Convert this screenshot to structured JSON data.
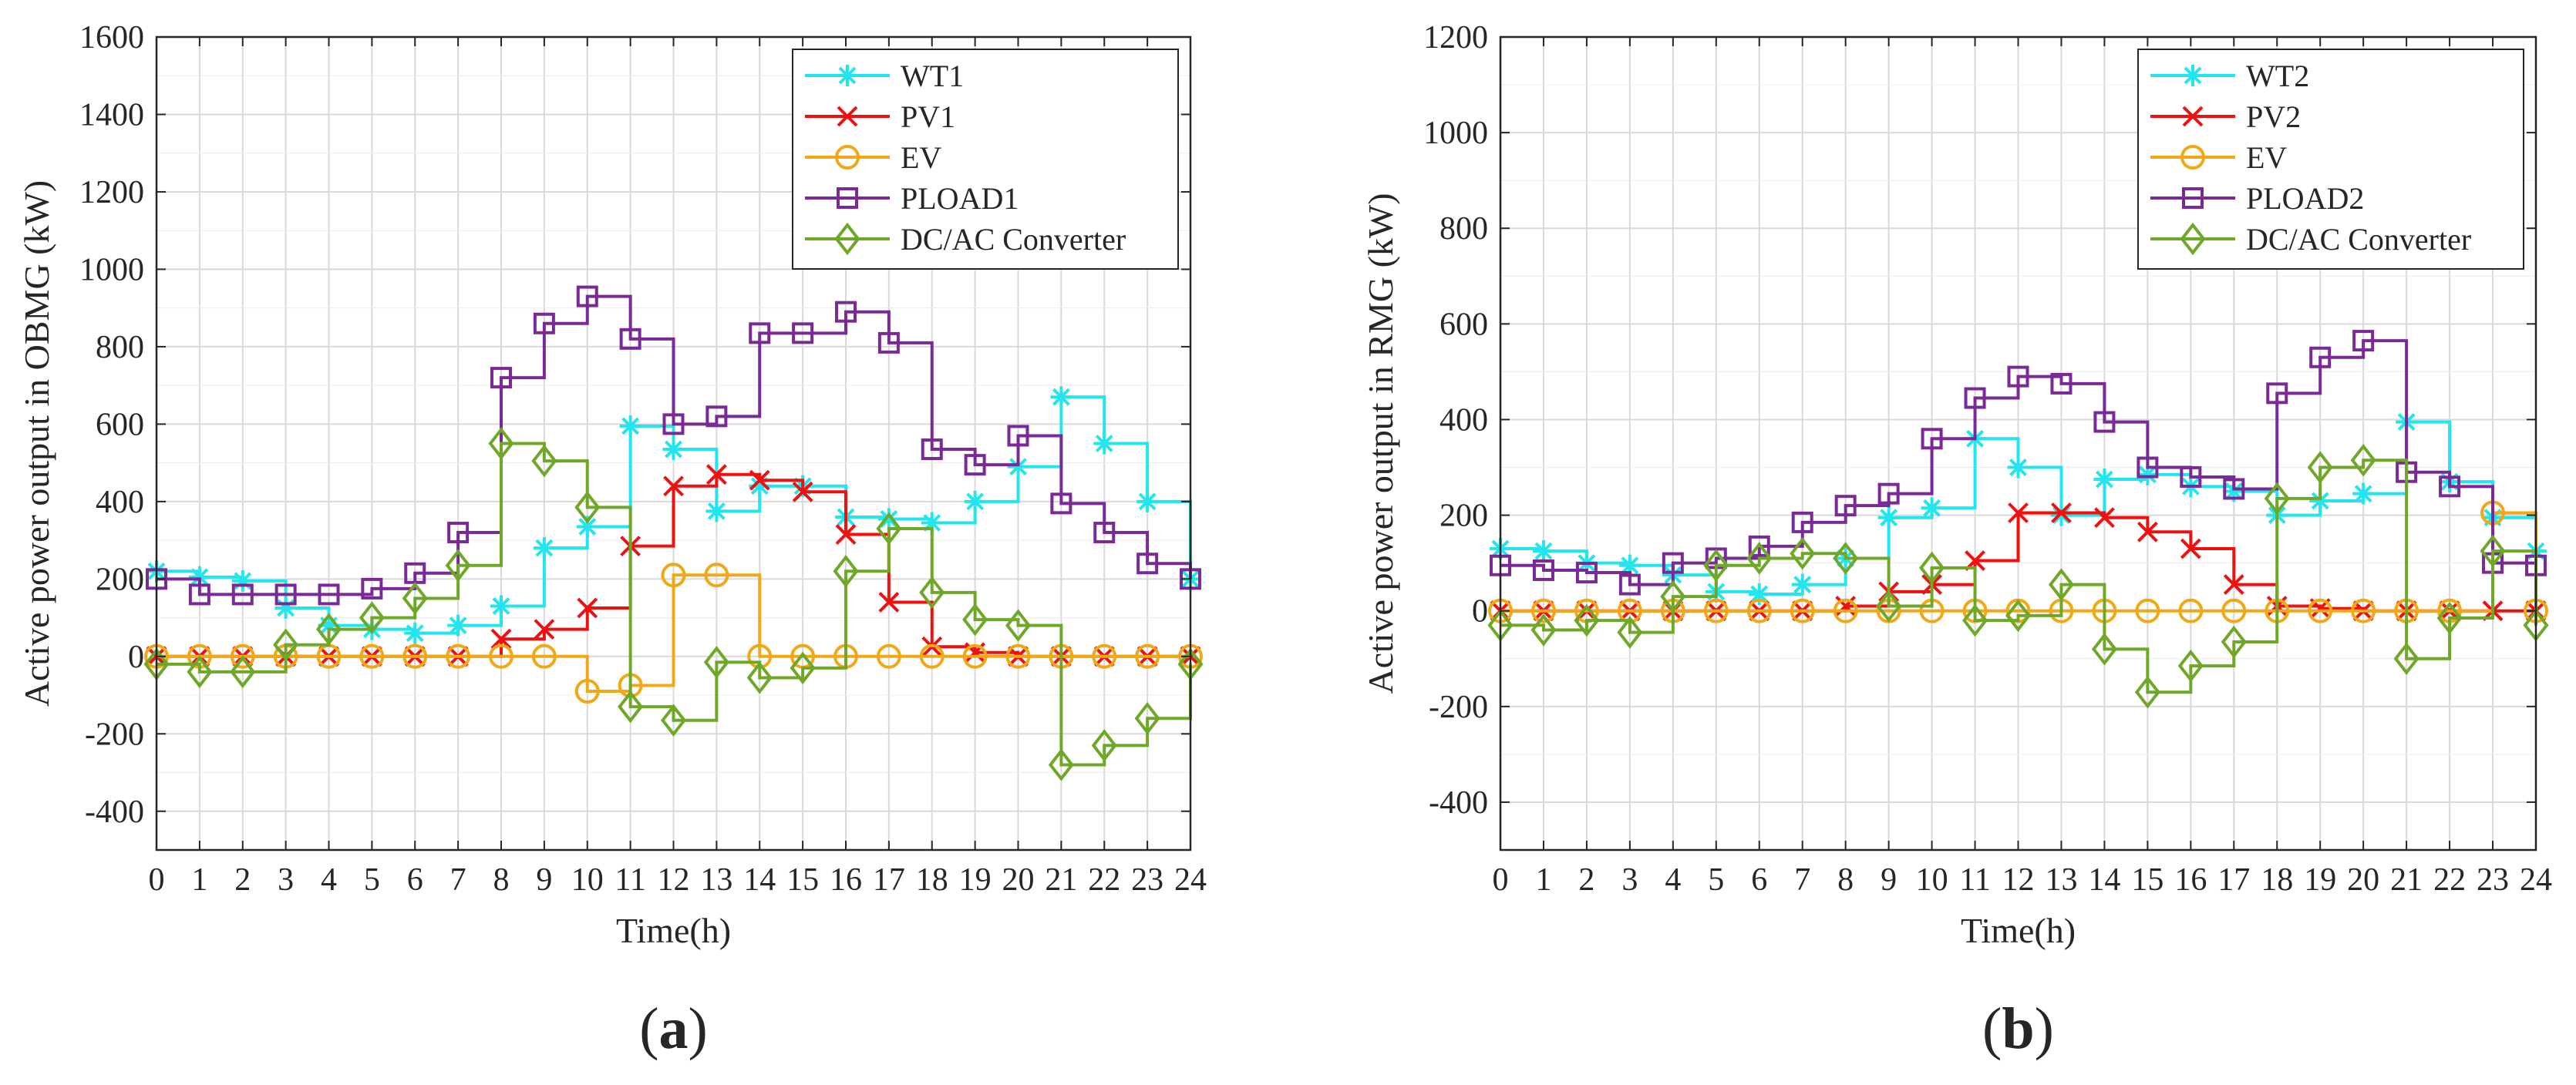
{
  "chart_data": [
    {
      "type": "line",
      "step": true,
      "panel_label": "a",
      "xlabel": "Time(h)",
      "ylabel": "Active power output in OBMG (kW)",
      "xlim": [
        0,
        24
      ],
      "ylim": [
        -500,
        1600
      ],
      "xticks": [
        0,
        1,
        2,
        3,
        4,
        5,
        6,
        7,
        8,
        9,
        10,
        11,
        12,
        13,
        14,
        15,
        16,
        17,
        18,
        19,
        20,
        21,
        22,
        23,
        24
      ],
      "yticks": [
        -400,
        -200,
        0,
        200,
        400,
        600,
        800,
        1000,
        1200,
        1400,
        1600
      ],
      "grid": true,
      "legend_position": "top-right",
      "x": [
        0,
        1,
        2,
        3,
        4,
        5,
        6,
        7,
        8,
        9,
        10,
        11,
        12,
        13,
        14,
        15,
        16,
        17,
        18,
        19,
        20,
        21,
        22,
        23,
        24
      ],
      "series": [
        {
          "name": "WT1",
          "color": "#22e5ee",
          "marker": "asterisk",
          "values": [
            220,
            205,
            195,
            125,
            80,
            70,
            60,
            80,
            130,
            280,
            335,
            595,
            535,
            375,
            440,
            440,
            360,
            355,
            345,
            400,
            490,
            670,
            550,
            400,
            200
          ]
        },
        {
          "name": "PV1",
          "color": "#ee1111",
          "marker": "x",
          "values": [
            0,
            0,
            0,
            0,
            0,
            0,
            0,
            0,
            45,
            70,
            125,
            285,
            440,
            470,
            455,
            425,
            315,
            140,
            25,
            10,
            0,
            0,
            0,
            0,
            0
          ]
        },
        {
          "name": "EV",
          "color": "#f0a818",
          "marker": "circle",
          "values": [
            0,
            0,
            0,
            0,
            0,
            0,
            0,
            0,
            0,
            0,
            -90,
            -75,
            210,
            210,
            0,
            0,
            0,
            0,
            0,
            0,
            0,
            0,
            0,
            0,
            0
          ]
        },
        {
          "name": "PLOAD1",
          "color": "#7a2a96",
          "marker": "square",
          "values": [
            200,
            160,
            160,
            160,
            160,
            175,
            215,
            320,
            720,
            860,
            930,
            820,
            600,
            620,
            835,
            835,
            890,
            810,
            535,
            495,
            570,
            395,
            320,
            240,
            200
          ]
        },
        {
          "name": "DC/AC Converter",
          "color": "#6fa829",
          "marker": "diamond",
          "values": [
            -20,
            -40,
            -40,
            30,
            70,
            100,
            150,
            235,
            550,
            505,
            385,
            -130,
            -165,
            -15,
            -55,
            -30,
            220,
            330,
            165,
            95,
            80,
            -280,
            -230,
            -160,
            -20
          ]
        }
      ]
    },
    {
      "type": "line",
      "step": true,
      "panel_label": "b",
      "xlabel": "Time(h)",
      "ylabel": "Active power output in RMG (kW)",
      "xlim": [
        0,
        24
      ],
      "ylim": [
        -500,
        1200
      ],
      "xticks": [
        0,
        1,
        2,
        3,
        4,
        5,
        6,
        7,
        8,
        9,
        10,
        11,
        12,
        13,
        14,
        15,
        16,
        17,
        18,
        19,
        20,
        21,
        22,
        23,
        24
      ],
      "yticks": [
        -400,
        -200,
        0,
        200,
        400,
        600,
        800,
        1000,
        1200
      ],
      "grid": true,
      "legend_position": "top-right",
      "x": [
        0,
        1,
        2,
        3,
        4,
        5,
        6,
        7,
        8,
        9,
        10,
        11,
        12,
        13,
        14,
        15,
        16,
        17,
        18,
        19,
        20,
        21,
        22,
        23,
        24
      ],
      "series": [
        {
          "name": "WT2",
          "color": "#22e5ee",
          "marker": "asterisk",
          "values": [
            130,
            125,
            100,
            95,
            75,
            40,
            35,
            55,
            110,
            195,
            215,
            360,
            300,
            200,
            275,
            285,
            260,
            250,
            200,
            230,
            245,
            395,
            270,
            195,
            125
          ]
        },
        {
          "name": "PV2",
          "color": "#ee1111",
          "marker": "x",
          "values": [
            0,
            0,
            0,
            0,
            0,
            0,
            0,
            0,
            10,
            40,
            55,
            105,
            205,
            205,
            195,
            165,
            130,
            55,
            10,
            5,
            0,
            0,
            0,
            0,
            0
          ]
        },
        {
          "name": "EV",
          "color": "#f0a818",
          "marker": "circle",
          "values": [
            0,
            0,
            0,
            0,
            0,
            0,
            0,
            0,
            0,
            0,
            0,
            0,
            0,
            0,
            0,
            0,
            0,
            0,
            0,
            0,
            0,
            0,
            0,
            205,
            0
          ]
        },
        {
          "name": "PLOAD2",
          "color": "#7a2a96",
          "marker": "square",
          "values": [
            95,
            85,
            80,
            55,
            100,
            110,
            135,
            185,
            220,
            245,
            360,
            445,
            490,
            475,
            395,
            300,
            280,
            255,
            455,
            530,
            565,
            290,
            260,
            100,
            95
          ]
        },
        {
          "name": "DC/AC Converter",
          "color": "#6fa829",
          "marker": "diamond",
          "values": [
            -30,
            -40,
            -20,
            -45,
            30,
            95,
            110,
            120,
            110,
            10,
            90,
            -20,
            -10,
            55,
            -80,
            -170,
            -115,
            -65,
            235,
            300,
            315,
            -100,
            -15,
            125,
            -30
          ]
        }
      ]
    }
  ]
}
